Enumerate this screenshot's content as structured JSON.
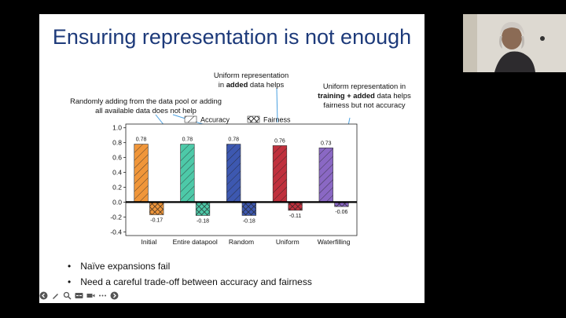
{
  "slide": {
    "title": "Ensuring representation is not enough",
    "annotations": {
      "left": "Randomly adding from the data pool or adding all available data does not help",
      "middle_line1": "Uniform representation",
      "middle_line2_pre": "in ",
      "middle_line2_bold": "added",
      "middle_line2_post": " data helps",
      "right_line1": "Uniform representation in",
      "right_bold": "training + added",
      "right_rest1": " data helps",
      "right_line3": "fairness but not accuracy"
    },
    "bullets": [
      "Naïve expansions fail",
      "Need a careful trade-off between accuracy and fairness"
    ]
  },
  "toolbar": [
    "back-arrow-icon",
    "pen-icon",
    "search-icon",
    "captions-icon",
    "video-icon",
    "more-icon",
    "forward-arrow-icon"
  ],
  "chart_data": {
    "type": "bar",
    "categories": [
      "Initial",
      "Entire datapool",
      "Random",
      "Uniform",
      "Waterfilling"
    ],
    "series": [
      {
        "name": "Accuracy",
        "values": [
          0.78,
          0.78,
          0.78,
          0.76,
          0.73
        ],
        "hatch": "///"
      },
      {
        "name": "Fairness",
        "values": [
          -0.17,
          -0.18,
          -0.18,
          -0.11,
          -0.06
        ],
        "hatch": "xxx"
      }
    ],
    "value_labels": {
      "Accuracy": [
        "0.78",
        "0.78",
        "0.78",
        "0.76",
        "0.73"
      ],
      "Fairness": [
        "-0.17",
        "-0.18",
        "-0.18",
        "-0.11",
        "-0.06"
      ]
    },
    "colors": [
      "#F0963A",
      "#4DC9A8",
      "#3D58B0",
      "#C0303D",
      "#8A68C4"
    ],
    "ylim": [
      -0.45,
      1.05
    ],
    "yticks": [
      "1.0",
      "0.8",
      "0.6",
      "0.4",
      "0.2",
      "0.0",
      "-0.2",
      "-0.4"
    ],
    "ytick_values": [
      1.0,
      0.8,
      0.6,
      0.4,
      0.2,
      0.0,
      -0.2,
      -0.4
    ],
    "legend_position": "top-center",
    "xlabel": "",
    "ylabel": ""
  }
}
